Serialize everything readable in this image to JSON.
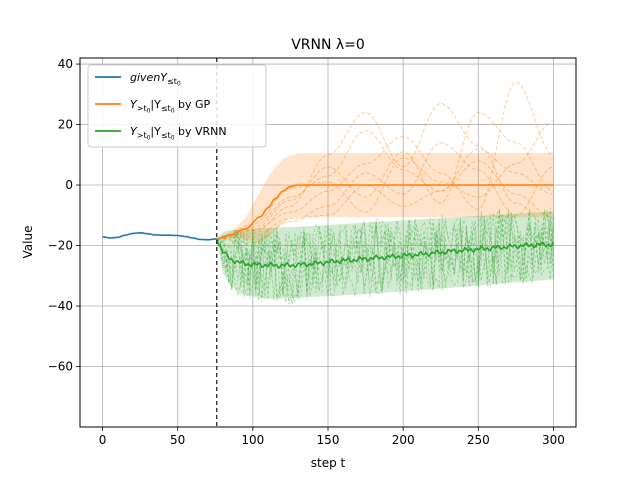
{
  "chart_data": {
    "type": "line",
    "title": "VRNN λ=0",
    "xlabel": "step t",
    "ylabel": "Value",
    "xlim": [
      -15,
      315
    ],
    "ylim": [
      -80,
      42
    ],
    "x_ticks": [
      0,
      50,
      100,
      150,
      200,
      250,
      300
    ],
    "y_ticks": [
      -60,
      -40,
      -20,
      0,
      20,
      40
    ],
    "grid": true,
    "legend_placement": "top-left",
    "t0": 76,
    "colors": {
      "given": "#1f77b4",
      "gp": "#ff7f0e",
      "vrnn": "#2ca02c",
      "divider": "#000000"
    },
    "series": [
      {
        "name": "givenY≤t0",
        "legend_parts": {
          "main": "givenY",
          "sub": "≤t",
          "subsub": "0"
        },
        "style": "solid",
        "x": [
          0,
          5,
          10,
          15,
          20,
          25,
          30,
          35,
          40,
          45,
          50,
          55,
          60,
          65,
          70,
          76
        ],
        "y": [
          -17.1,
          -17.5,
          -17.3,
          -16.6,
          -16.0,
          -15.8,
          -16.1,
          -16.5,
          -16.6,
          -16.6,
          -16.7,
          -17.0,
          -17.5,
          -18.0,
          -18.1,
          -17.8
        ]
      },
      {
        "name": "Y>t0|Y≤t0 by GP",
        "legend_parts": {
          "a": "Y",
          "a_sub": ">t",
          "a_subsub": "0",
          "b": "|Y",
          "b_sub": "≤t",
          "b_subsub": "0",
          "suffix": " by GP"
        },
        "style": "solid",
        "x": [
          76,
          85,
          95,
          105,
          110,
          115,
          120,
          125,
          130,
          140,
          150,
          200,
          250,
          300
        ],
        "y": [
          -17.8,
          -16.5,
          -14.5,
          -10.5,
          -7.5,
          -4.5,
          -2.0,
          -0.5,
          0,
          0,
          0,
          0,
          0,
          0
        ],
        "band_upper": [
          -17.8,
          -15.5,
          -11.0,
          -2.0,
          2.5,
          6.0,
          8.5,
          9.8,
          10.4,
          10.6,
          10.6,
          10.6,
          10.6,
          10.6
        ],
        "band_lower": [
          -17.8,
          -17.5,
          -18.0,
          -19.0,
          -17.5,
          -15.0,
          -12.5,
          -11.0,
          -10.6,
          -10.6,
          -10.6,
          -10.6,
          -10.6,
          -10.6
        ]
      },
      {
        "name": "Y>t0|Y≤t0 by VRNN",
        "legend_parts": {
          "a": "Y",
          "a_sub": ">t",
          "a_subsub": "0",
          "b": "|Y",
          "b_sub": "≤t",
          "b_subsub": "0",
          "suffix": " by VRNN"
        },
        "style": "solid",
        "x": [
          76,
          80,
          85,
          90,
          95,
          100,
          110,
          120,
          130,
          140,
          150,
          160,
          170,
          180,
          190,
          200,
          210,
          220,
          230,
          240,
          250,
          260,
          270,
          280,
          290,
          300
        ],
        "y": [
          -17.8,
          -22.0,
          -24.5,
          -25.5,
          -26.0,
          -26.3,
          -26.5,
          -26.6,
          -26.4,
          -26.0,
          -25.5,
          -25.0,
          -24.6,
          -24.2,
          -23.8,
          -23.4,
          -23.0,
          -22.5,
          -22.0,
          -21.6,
          -21.2,
          -20.8,
          -20.4,
          -20.0,
          -19.8,
          -19.6
        ],
        "band_upper": [
          -17.8,
          -15.5,
          -15.0,
          -14.8,
          -14.6,
          -14.4,
          -14.2,
          -14.0,
          -13.8,
          -13.5,
          -13.2,
          -12.9,
          -12.6,
          -12.3,
          -12.0,
          -11.7,
          -11.4,
          -11.1,
          -10.8,
          -10.5,
          -10.2,
          -9.9,
          -9.6,
          -9.3,
          -9.0,
          -8.8
        ],
        "band_lower": [
          -17.8,
          -29.0,
          -33.0,
          -35.5,
          -36.5,
          -37.0,
          -37.5,
          -37.5,
          -37.2,
          -37.0,
          -36.8,
          -36.5,
          -36.2,
          -35.8,
          -35.5,
          -35.2,
          -34.8,
          -34.4,
          -34.0,
          -33.6,
          -33.2,
          -32.8,
          -32.4,
          -32.0,
          -31.6,
          -31.2
        ]
      }
    ],
    "gp_samples": [
      {
        "x": [
          76,
          100,
          125,
          150,
          175,
          200,
          225,
          250,
          275,
          300
        ],
        "y": [
          -17.8,
          -14,
          -4,
          3,
          18,
          5,
          -2,
          12,
          4,
          -3
        ]
      },
      {
        "x": [
          76,
          100,
          125,
          150,
          175,
          200,
          225,
          250,
          275,
          300
        ],
        "y": [
          -17.8,
          -15,
          -9,
          -2,
          7,
          16,
          4,
          -8,
          34,
          10
        ]
      },
      {
        "x": [
          76,
          100,
          125,
          150,
          175,
          200,
          225,
          250,
          275,
          300
        ],
        "y": [
          -17.8,
          -16,
          -7,
          10,
          24,
          6,
          27,
          13,
          -6,
          -15
        ]
      },
      {
        "x": [
          76,
          100,
          125,
          150,
          175,
          200,
          225,
          250,
          275,
          300
        ],
        "y": [
          -17.8,
          -13,
          -1,
          1,
          -9,
          9,
          1,
          -4,
          7,
          21
        ]
      },
      {
        "x": [
          76,
          100,
          125,
          150,
          175,
          200,
          225,
          250,
          275,
          300
        ],
        "y": [
          -17.8,
          -19,
          -12,
          -7,
          4,
          -3,
          14,
          5,
          -10,
          6
        ]
      },
      {
        "x": [
          76,
          100,
          125,
          150,
          175,
          200,
          225,
          250,
          275,
          300
        ],
        "y": [
          -17.8,
          -15,
          -5,
          6,
          -4,
          11,
          -6,
          24,
          14,
          -2
        ]
      },
      {
        "x": [
          76,
          100,
          125,
          150,
          175,
          200,
          225,
          250,
          275,
          300
        ],
        "y": [
          -17.8,
          -17,
          -11,
          -10,
          0,
          -7,
          -2,
          8,
          -3,
          -11
        ]
      }
    ],
    "vrnn_samples_count": 8
  }
}
